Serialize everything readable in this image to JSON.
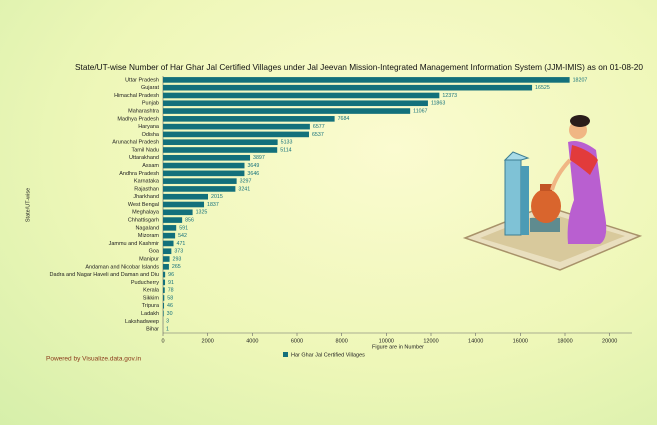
{
  "chart_data": {
    "type": "hbar",
    "title": "State/UT-wise Number of Har Ghar Jal Certified Villages under Jal Jeevan Mission-Integrated Management Information System (JJM-IMIS) as on 01-08-20",
    "y_label": "State/UT-wise",
    "x_label": "Figure are in Number",
    "footer": "Powered by Visualize.data.gov.in",
    "categories": [
      "Uttar Pradesh",
      "Gujarat",
      "Himachal Pradesh",
      "Punjab",
      "Maharashtra",
      "Madhya Pradesh",
      "Haryana",
      "Odisha",
      "Arunachal Pradesh",
      "Tamil Nadu",
      "Uttarakhand",
      "Assam",
      "Andhra Pradesh",
      "Karnataka",
      "Rajasthan",
      "Jharkhand",
      "West Bengal",
      "Meghalaya",
      "Chhattisgarh",
      "Nagaland",
      "Mizoram",
      "Jammu and Kashmir",
      "Goa",
      "Manipur",
      "Andaman and Nicobar Islands",
      "Dadra and Nagar Haveli and Daman and Diu",
      "Puducherry",
      "Kerala",
      "Sikkim",
      "Tripura",
      "Ladakh",
      "Lakshadweep",
      "Bihar"
    ],
    "series": [
      {
        "name": "Har Ghar Jal Certified Villages",
        "color": "#13707b",
        "values": [
          18207,
          16525,
          12373,
          11863,
          11067,
          7684,
          6577,
          6537,
          5133,
          5114,
          3897,
          3649,
          3646,
          3297,
          3241,
          2015,
          1837,
          1325,
          856,
          591,
          542,
          471,
          373,
          293,
          265,
          96,
          91,
          78,
          58,
          46,
          30,
          3,
          1
        ]
      }
    ],
    "xlim": [
      0,
      21000
    ],
    "xticks": [
      0,
      2000,
      4000,
      6000,
      8000,
      10000,
      12000,
      14000,
      16000,
      18000,
      20000
    ],
    "legend": "bottom"
  }
}
